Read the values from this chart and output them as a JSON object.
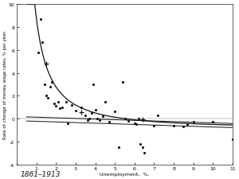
{
  "title": "1861–1913",
  "xlabel": "Unemployment,  %.",
  "ylabel": "Rate of change of money wage rates, % per year.",
  "xlim": [
    0,
    11
  ],
  "ylim": [
    -4,
    10
  ],
  "xticks": [
    0,
    1,
    2,
    3,
    4,
    5,
    6,
    7,
    8,
    9,
    10,
    11
  ],
  "yticks": [
    -4,
    -2,
    0,
    2,
    4,
    6,
    8,
    10
  ],
  "scatter_points": [
    [
      1.2,
      8.7
    ],
    [
      1.1,
      5.8
    ],
    [
      1.3,
      6.7
    ],
    [
      1.4,
      3.0
    ],
    [
      1.5,
      2.0
    ],
    [
      1.6,
      1.8
    ],
    [
      1.7,
      2.8
    ],
    [
      1.8,
      3.2
    ],
    [
      1.9,
      1.3
    ],
    [
      2.0,
      1.1
    ],
    [
      2.1,
      1.5
    ],
    [
      2.2,
      0.9
    ],
    [
      2.3,
      1.0
    ],
    [
      2.5,
      1.5
    ],
    [
      2.6,
      -0.4
    ],
    [
      2.8,
      1.2
    ],
    [
      3.0,
      0.7
    ],
    [
      3.3,
      1.0
    ],
    [
      3.5,
      0.3
    ],
    [
      3.6,
      -0.1
    ],
    [
      3.7,
      0.0
    ],
    [
      3.8,
      0.5
    ],
    [
      3.9,
      3.0
    ],
    [
      4.0,
      0.8
    ],
    [
      4.1,
      0.0
    ],
    [
      4.2,
      -0.1
    ],
    [
      4.4,
      0.2
    ],
    [
      4.5,
      1.5
    ],
    [
      4.7,
      -0.3
    ],
    [
      5.0,
      0.6
    ],
    [
      5.2,
      -2.5
    ],
    [
      5.4,
      3.2
    ],
    [
      5.5,
      0.0
    ],
    [
      5.7,
      -0.2
    ],
    [
      6.0,
      -0.4
    ],
    [
      6.1,
      -0.5
    ],
    [
      6.2,
      0.0
    ],
    [
      6.3,
      -2.2
    ],
    [
      6.4,
      -2.5
    ],
    [
      6.5,
      -3.0
    ],
    [
      7.0,
      -0.6
    ],
    [
      7.2,
      0.3
    ],
    [
      8.0,
      -0.6
    ],
    [
      8.5,
      -0.7
    ],
    [
      8.7,
      -0.5
    ],
    [
      9.0,
      -0.3
    ],
    [
      10.0,
      -0.3
    ],
    [
      11.0,
      -1.8
    ]
  ],
  "cross_points": [
    [
      1.5,
      4.8
    ],
    [
      3.3,
      0.55
    ],
    [
      6.4,
      -0.08
    ]
  ],
  "curve_color": "#111111",
  "scatter_color": "#111111",
  "background_color": "#ffffff",
  "phillips_scale": 9.638,
  "phillips_exp": -1.394,
  "phillips_shift": -0.9,
  "line1_slope": -0.055,
  "line1_intercept": 0.18,
  "line2_slope": -0.055,
  "line2_intercept": -0.18
}
